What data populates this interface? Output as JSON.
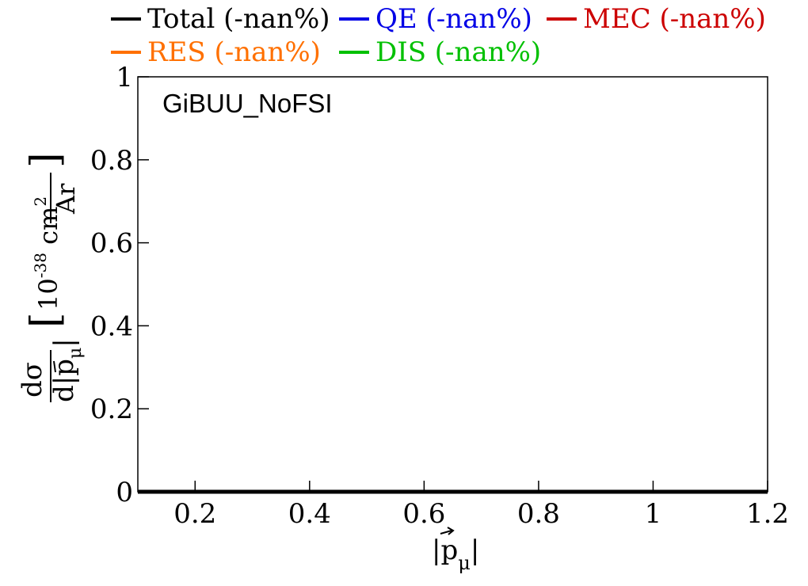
{
  "chart_data": {
    "type": "line",
    "title": "GiBUU_NoFSI",
    "xlabel": "|p⃗μ|",
    "ylabel": "dσ/d|p⃗μ| [10^-38 cm²/Ar]",
    "xlim": [
      0.1,
      1.2
    ],
    "ylim": [
      0,
      1
    ],
    "xticks": [
      "0.2",
      "0.4",
      "0.6",
      "0.8",
      "1",
      "1.2"
    ],
    "xtick_values": [
      0.2,
      0.4,
      0.6,
      0.8,
      1.0,
      1.2
    ],
    "yticks": [
      "0",
      "0.2",
      "0.4",
      "0.6",
      "0.8",
      "1"
    ],
    "ytick_values": [
      0,
      0.2,
      0.4,
      0.6,
      0.8,
      1.0
    ],
    "grid": false,
    "legend_position": "top",
    "series": [
      {
        "name": "Total (-nan%)",
        "color": "#000000",
        "x": [
          0.1,
          1.2
        ],
        "values": [
          0,
          0
        ]
      },
      {
        "name": "QE (-nan%)",
        "color": "#0000e6",
        "x": [],
        "values": []
      },
      {
        "name": "MEC (-nan%)",
        "color": "#cc0000",
        "x": [],
        "values": []
      },
      {
        "name": "RES (-nan%)",
        "color": "#ff7000",
        "x": [],
        "values": []
      },
      {
        "name": "DIS (-nan%)",
        "color": "#00c000",
        "x": [],
        "values": []
      }
    ]
  }
}
